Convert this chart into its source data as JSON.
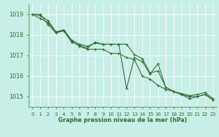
{
  "background_color": "#c8eee8",
  "grid_color": "#ffffff",
  "line_color": "#2d6a2d",
  "xlabel": "Graphe pression niveau de la mer (hPa)",
  "xlabel_color": "#2d6a2d",
  "tick_color": "#2d6a2d",
  "ylim": [
    1014.5,
    1019.5
  ],
  "xlim": [
    -0.5,
    23.5
  ],
  "yticks": [
    1015,
    1016,
    1017,
    1018,
    1019
  ],
  "xticks": [
    0,
    1,
    2,
    3,
    4,
    5,
    6,
    7,
    8,
    9,
    10,
    11,
    12,
    13,
    14,
    15,
    16,
    17,
    18,
    19,
    20,
    21,
    22,
    23
  ],
  "series1": [
    1019.0,
    1018.95,
    1018.7,
    1018.15,
    1018.25,
    1017.75,
    1017.55,
    1017.45,
    1017.6,
    1017.55,
    1017.55,
    1017.55,
    1017.55,
    1017.05,
    1016.85,
    1016.15,
    1016.25,
    1015.45,
    1015.25,
    1015.15,
    1015.05,
    1015.1,
    1015.2,
    1014.9
  ],
  "series2": [
    1019.0,
    1018.8,
    1018.6,
    1018.15,
    1018.2,
    1017.7,
    1017.45,
    1017.3,
    1017.3,
    1017.3,
    1017.1,
    1017.1,
    1016.9,
    1016.8,
    1016.0,
    1015.85,
    1015.55,
    1015.35,
    1015.25,
    1015.1,
    1014.9,
    1015.0,
    1015.1,
    1014.85
  ],
  "series3": [
    1019.0,
    1019.0,
    1018.5,
    1018.1,
    1018.2,
    1017.65,
    1017.5,
    1017.35,
    1017.65,
    1017.55,
    1017.55,
    1017.55,
    1015.4,
    1016.9,
    1016.7,
    1016.1,
    1016.6,
    1015.45,
    1015.25,
    1015.1,
    1015.0,
    1015.0,
    1015.1,
    1014.85
  ]
}
